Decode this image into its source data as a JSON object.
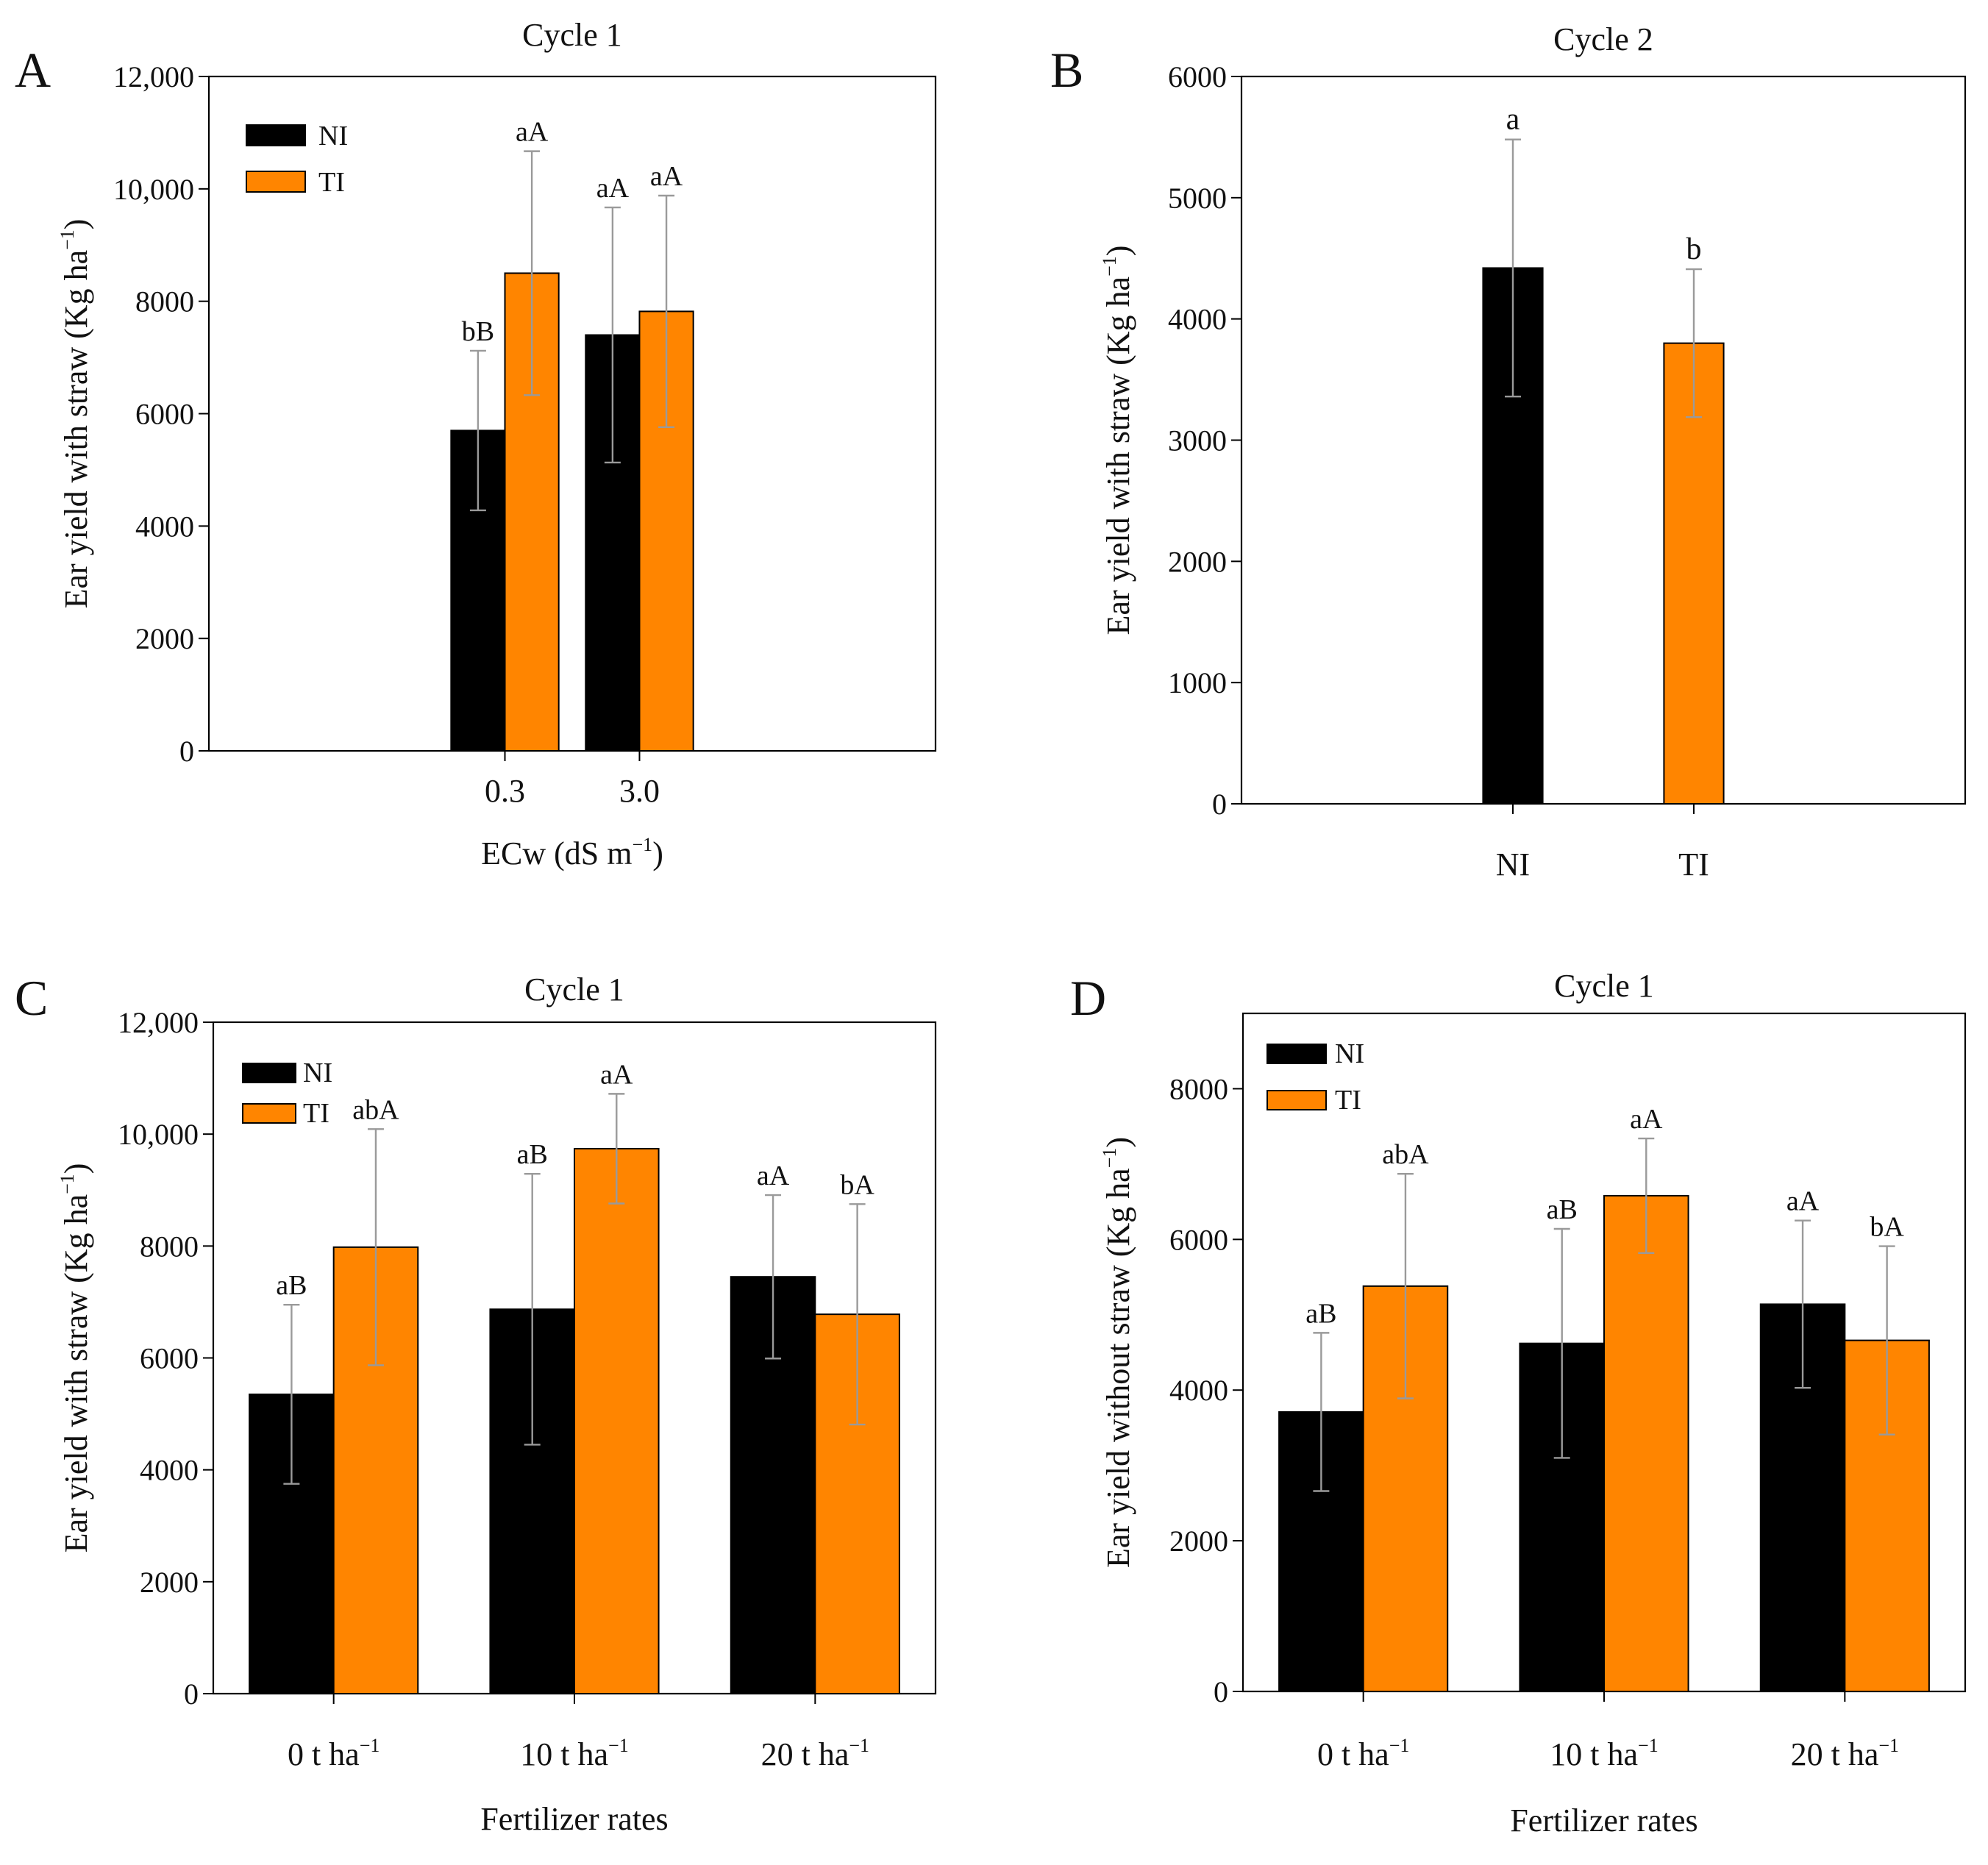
{
  "figure": {
    "colors": {
      "NI": "#000000",
      "TI": "#FF8500",
      "error": "#9a9a9a",
      "axis": "#000000"
    }
  },
  "chart_data": [
    {
      "panel": "A",
      "type": "bar",
      "title": "Cycle 1",
      "ylabel": "Ear yield with straw (Kg ha",
      "ylabel_sup": "−1",
      "ylabel_close": ")",
      "xlabel": "ECw (dS m",
      "xlabel_sup": "−1",
      "xlabel_close": ")",
      "xlim": [
        -2.7,
        2.7
      ],
      "bar_width": 0.4,
      "ylim": [
        0,
        12000
      ],
      "yticks": [
        0,
        2000,
        4000,
        6000,
        8000,
        10000,
        12000
      ],
      "ytick_labels": [
        "0",
        "2000",
        "4000",
        "6000",
        "8000",
        "10,000",
        "12,000"
      ],
      "categories": [
        "0.3",
        "3.0"
      ],
      "category_positions": [
        -0.5,
        0.5
      ],
      "series": [
        {
          "name": "NI",
          "values": [
            5700,
            7400
          ],
          "errors": [
            1420,
            2270
          ],
          "labels": [
            "bB",
            "aA"
          ]
        },
        {
          "name": "TI",
          "values": [
            8500,
            7820
          ],
          "errors": [
            2170,
            2060
          ],
          "labels": [
            "aA",
            "aA"
          ]
        }
      ],
      "legend": {
        "position": "top-left",
        "entries": [
          "NI",
          "TI"
        ]
      }
    },
    {
      "panel": "B",
      "type": "bar",
      "title": "Cycle 2",
      "ylabel": "Ear yield with straw (Kg ha",
      "ylabel_sup": "−1",
      "ylabel_close": ")",
      "xlabel": "",
      "xlim": [
        -2,
        2
      ],
      "bar_width": 0.33,
      "ylim": [
        0,
        6000
      ],
      "yticks": [
        0,
        1000,
        2000,
        3000,
        4000,
        5000,
        6000
      ],
      "ytick_labels": [
        "0",
        "1000",
        "2000",
        "3000",
        "4000",
        "5000",
        "6000"
      ],
      "categories": [
        "NI",
        "TI"
      ],
      "category_positions": [
        -0.5,
        0.5
      ],
      "series": [
        {
          "name": "NI",
          "values": [
            4420,
            null
          ],
          "errors": [
            1060,
            null
          ],
          "labels": [
            "a",
            null
          ]
        },
        {
          "name": "TI",
          "values": [
            null,
            3800
          ],
          "errors": [
            null,
            610
          ],
          "labels": [
            null,
            "b"
          ]
        }
      ]
    },
    {
      "panel": "C",
      "type": "bar",
      "title": "Cycle 1",
      "ylabel": "Ear yield with straw (Kg ha",
      "ylabel_sup": "−1",
      "ylabel_close": ")",
      "xlabel": "Fertilizer rates",
      "xlim": [
        0.5,
        3.5
      ],
      "bar_width": 0.35,
      "ylim": [
        0,
        12000
      ],
      "yticks": [
        0,
        2000,
        4000,
        6000,
        8000,
        10000,
        12000
      ],
      "ytick_labels": [
        "0",
        "2000",
        "4000",
        "6000",
        "8000",
        "10,000",
        "12,000"
      ],
      "categories": [
        "0 t ha",
        "10 t ha",
        "20 t ha"
      ],
      "category_sup": "−1",
      "category_positions": [
        1,
        2,
        3
      ],
      "series": [
        {
          "name": "NI",
          "values": [
            5350,
            6870,
            7450
          ],
          "errors": [
            1600,
            2420,
            1460
          ],
          "labels": [
            "aB",
            "aB",
            "aA"
          ]
        },
        {
          "name": "TI",
          "values": [
            7980,
            9740,
            6780
          ],
          "errors": [
            2110,
            980,
            1970
          ],
          "labels": [
            "abA",
            "aA",
            "bA"
          ]
        }
      ],
      "legend": {
        "position": "top-left",
        "entries": [
          "NI",
          "TI"
        ]
      }
    },
    {
      "panel": "D",
      "type": "bar",
      "title": "Cycle 1",
      "ylabel": "Ear yield without straw (Kg ha",
      "ylabel_sup": "−1",
      "ylabel_close": ")",
      "xlabel": "Fertilizer rates",
      "xlim": [
        0.5,
        3.5
      ],
      "bar_width": 0.35,
      "ylim": [
        0,
        9000
      ],
      "yticks": [
        0,
        2000,
        4000,
        6000,
        8000
      ],
      "ytick_labels": [
        "0",
        "2000",
        "4000",
        "6000",
        "8000"
      ],
      "categories": [
        "0 t ha",
        "10 t ha",
        "20 t ha"
      ],
      "category_sup": "−1",
      "category_positions": [
        1,
        2,
        3
      ],
      "series": [
        {
          "name": "NI",
          "values": [
            3710,
            4620,
            5140
          ],
          "errors": [
            1050,
            1520,
            1110
          ],
          "labels": [
            "aB",
            "aB",
            "aA"
          ]
        },
        {
          "name": "TI",
          "values": [
            5380,
            6580,
            4660
          ],
          "errors": [
            1490,
            760,
            1250
          ],
          "labels": [
            "abA",
            "aA",
            "bA"
          ]
        }
      ],
      "legend": {
        "position": "top-left",
        "entries": [
          "NI",
          "TI"
        ]
      }
    }
  ]
}
